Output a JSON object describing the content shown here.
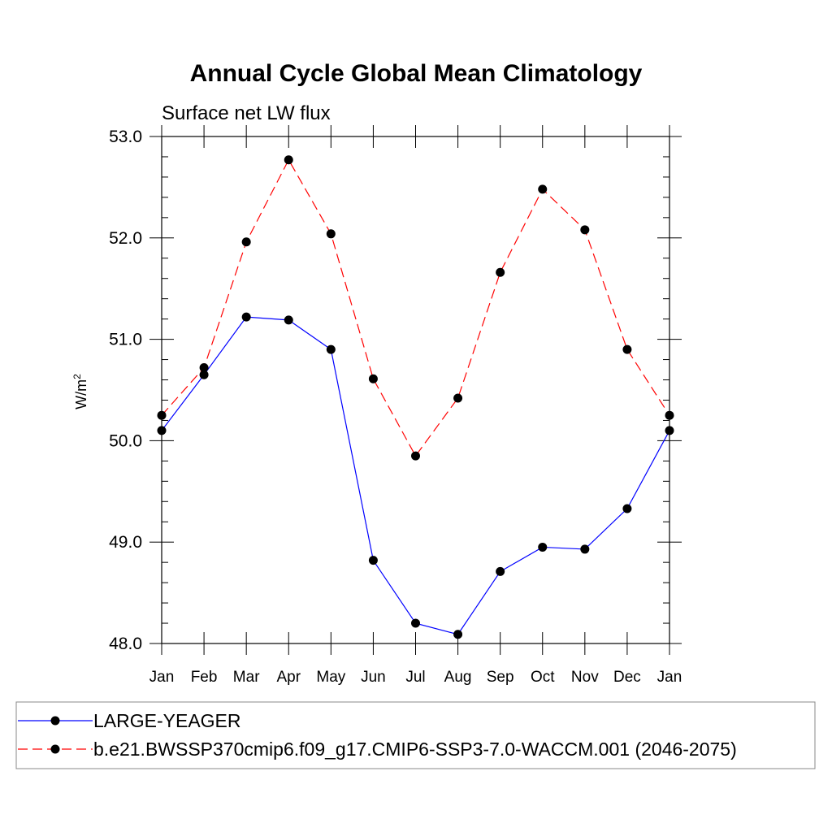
{
  "chart_data": {
    "type": "line",
    "title": "Annual Cycle Global Mean Climatology",
    "subtitle": "Surface net LW flux",
    "xlabel": "",
    "ylabel": "W/m",
    "ylabel_superscript": "2",
    "categories": [
      "Jan",
      "Feb",
      "Mar",
      "Apr",
      "May",
      "Jun",
      "Jul",
      "Aug",
      "Sep",
      "Oct",
      "Nov",
      "Dec",
      "Jan"
    ],
    "yticks": [
      "48.0",
      "49.0",
      "50.0",
      "51.0",
      "52.0",
      "53.0"
    ],
    "ylim": [
      48.0,
      53.0
    ],
    "grid": false,
    "legend_position": "bottom",
    "series": [
      {
        "name": "LARGE-YEAGER",
        "color": "#0000ff",
        "line_style": "solid",
        "marker": "filled-circle",
        "values": [
          50.1,
          50.65,
          51.22,
          51.19,
          50.9,
          48.82,
          48.2,
          48.09,
          48.71,
          48.95,
          48.93,
          49.33,
          50.1
        ]
      },
      {
        "name": "b.e21.BWSSP370cmip6.f09_g17.CMIP6-SSP3-7.0-WACCM.001 (2046-2075)",
        "color": "#ff0000",
        "line_style": "dashed",
        "marker": "filled-circle",
        "values": [
          50.25,
          50.72,
          51.96,
          52.77,
          52.04,
          50.61,
          49.85,
          50.42,
          51.66,
          52.48,
          52.08,
          50.9,
          50.25
        ]
      }
    ]
  }
}
